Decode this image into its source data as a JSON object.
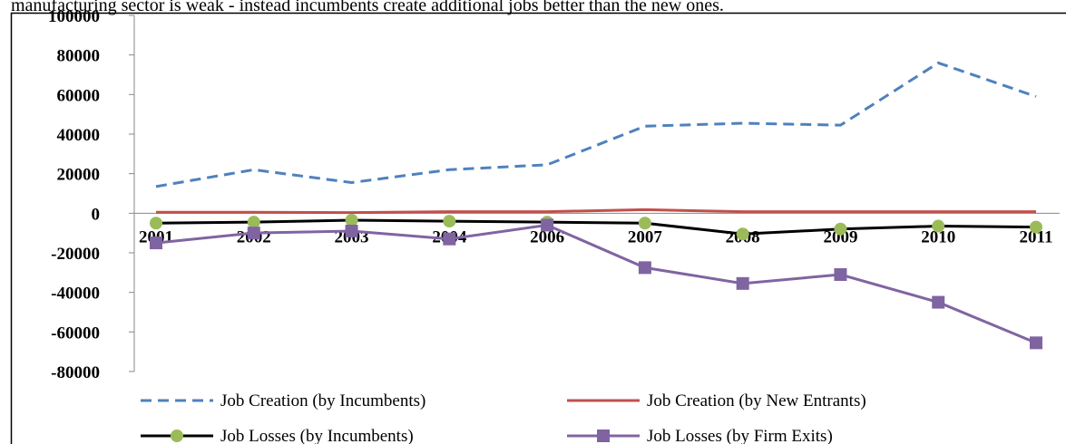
{
  "caption": "manufacturing sector is weak - instead incumbents create additional jobs better than the new ones.",
  "chart_data": {
    "type": "line",
    "categories": [
      "2001",
      "2002",
      "2003",
      "2004",
      "2006",
      "2007",
      "2008",
      "2009",
      "2010",
      "2011"
    ],
    "series": [
      {
        "name": "Job Creation (by Incumbents)",
        "color": "#4f81bd",
        "dash": true,
        "marker": null,
        "values": [
          13500,
          22000,
          15500,
          22000,
          24500,
          44000,
          45500,
          44500,
          76000,
          59000
        ]
      },
      {
        "name": "Job Creation (by New Entrants)",
        "color": "#c0504d",
        "dash": false,
        "marker": null,
        "values": [
          500,
          500,
          300,
          800,
          800,
          1800,
          800,
          800,
          800,
          800
        ]
      },
      {
        "name": "Job Losses (by Incumbents)",
        "color": "#000000",
        "markerColor": "#9bbb59",
        "dash": false,
        "marker": "circle",
        "values": [
          -5000,
          -4500,
          -3500,
          -4000,
          -4500,
          -5000,
          -10500,
          -8000,
          -6500,
          -7000
        ]
      },
      {
        "name": "Job Losses (by Firm Exits)",
        "color": "#8064a2",
        "dash": false,
        "marker": "square",
        "values": [
          -15000,
          -10000,
          -9000,
          -13000,
          -6000,
          -27500,
          -35500,
          -31000,
          -45000,
          -65500
        ]
      }
    ],
    "ylim": [
      -80000,
      100000
    ],
    "yticks": [
      -80000,
      -60000,
      -40000,
      -20000,
      0,
      20000,
      40000,
      60000,
      80000,
      100000
    ],
    "legend": "bottom"
  }
}
